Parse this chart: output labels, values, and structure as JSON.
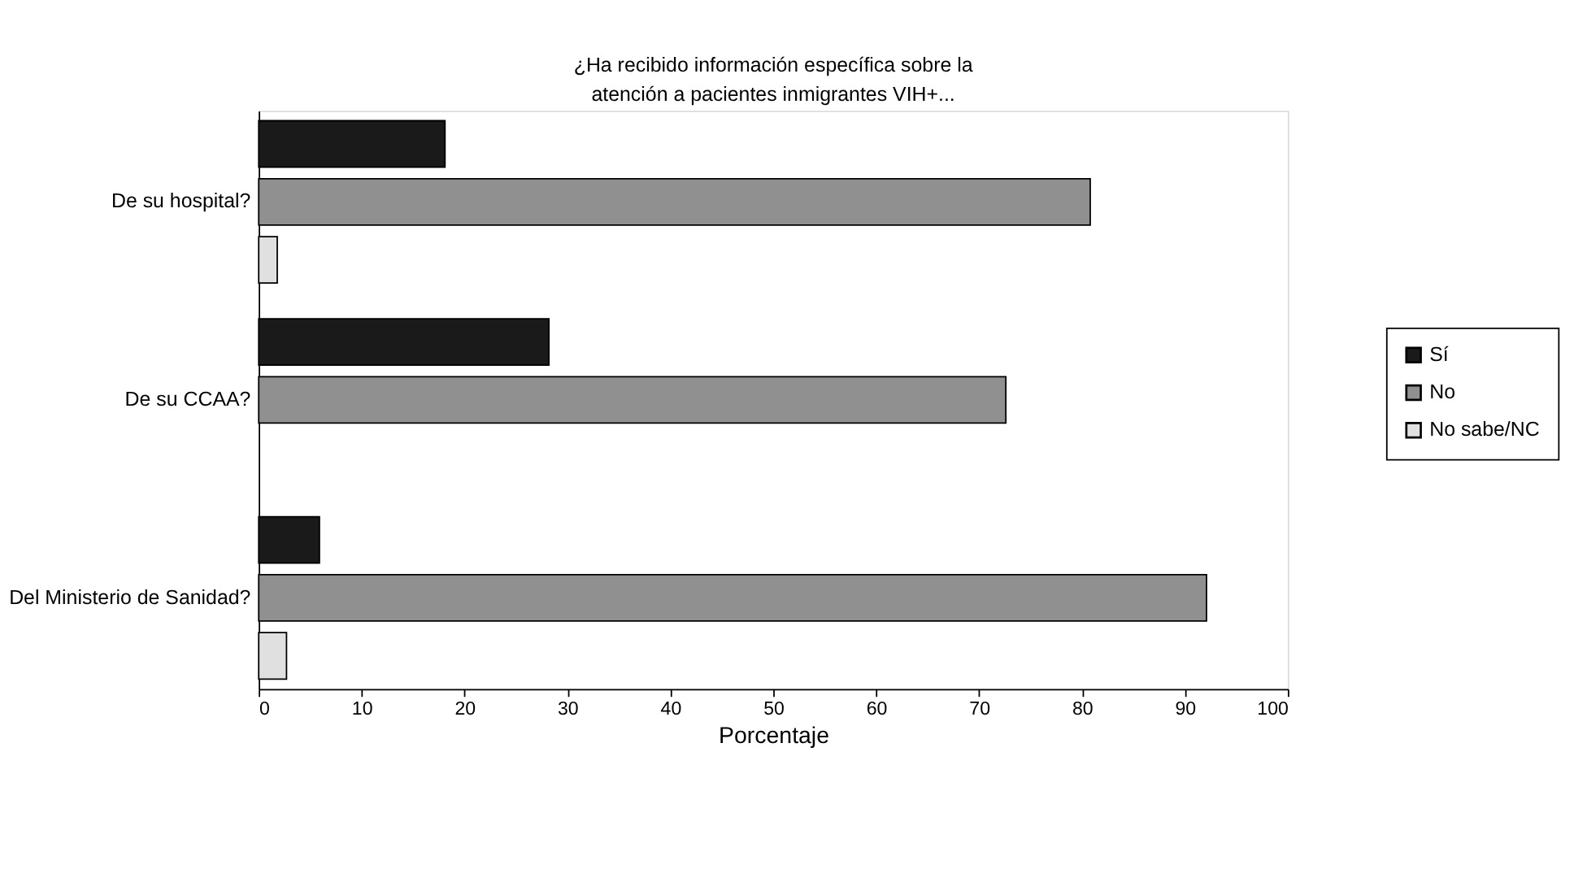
{
  "chart_data": {
    "type": "bar",
    "orientation": "horizontal",
    "title": "¿Ha recibido información específica sobre la atención a pacientes inmigrantes VIH+...",
    "xlabel": "Porcentaje",
    "categories": [
      "De su hospital?",
      "De su CCAA?",
      "Del Ministerio de Sanidad?"
    ],
    "series": [
      {
        "name": "Sí",
        "color": "#1a1a1a",
        "values": [
          18.1,
          28.2,
          5.9
        ]
      },
      {
        "name": "No",
        "color": "#909090",
        "values": [
          80.8,
          72.6,
          92.1
        ]
      },
      {
        "name": "No sabe/NC",
        "color": "#e0e0e0",
        "values": [
          1.8,
          null,
          2.7
        ]
      }
    ],
    "xlim": [
      0,
      100
    ],
    "xticks": [
      0,
      10,
      20,
      30,
      40,
      50,
      60,
      70,
      80,
      90,
      100
    ],
    "grid": false,
    "legend": "right"
  }
}
